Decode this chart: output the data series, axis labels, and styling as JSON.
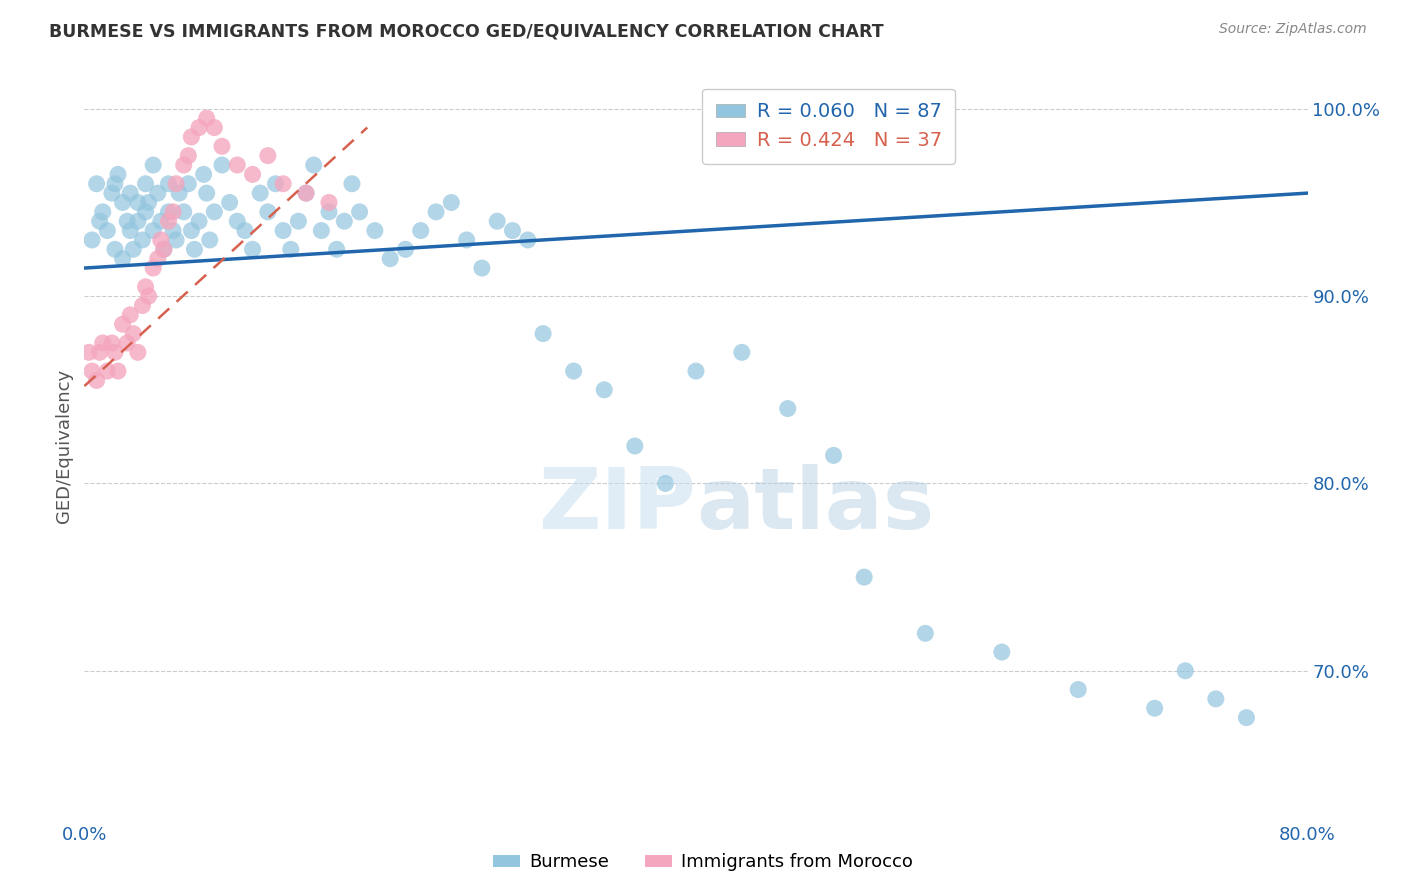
{
  "title": "BURMESE VS IMMIGRANTS FROM MOROCCO GED/EQUIVALENCY CORRELATION CHART",
  "source": "Source: ZipAtlas.com",
  "ylabel": "GED/Equivalency",
  "xmin": 0.0,
  "xmax": 0.8,
  "ymin": 0.62,
  "ymax": 1.02,
  "yticks": [
    0.7,
    0.8,
    0.9,
    1.0
  ],
  "ytick_labels": [
    "70.0%",
    "80.0%",
    "90.0%",
    "100.0%"
  ],
  "xtick_vals": [
    0.0,
    0.1,
    0.2,
    0.3,
    0.4,
    0.5,
    0.6,
    0.7,
    0.8
  ],
  "xtick_labels": [
    "0.0%",
    "",
    "",
    "",
    "",
    "",
    "",
    "",
    "80.0%"
  ],
  "blue_R": 0.06,
  "blue_N": 87,
  "pink_R": 0.424,
  "pink_N": 37,
  "blue_color": "#92c5de",
  "pink_color": "#f4a6be",
  "blue_line_color": "#2166ac",
  "pink_line_color": "#d6604d",
  "legend_blue_label": "Burmese",
  "legend_pink_label": "Immigrants from Morocco",
  "blue_x": [
    0.005,
    0.008,
    0.01,
    0.012,
    0.015,
    0.018,
    0.02,
    0.02,
    0.022,
    0.025,
    0.025,
    0.028,
    0.03,
    0.03,
    0.032,
    0.035,
    0.035,
    0.038,
    0.04,
    0.04,
    0.042,
    0.045,
    0.045,
    0.048,
    0.05,
    0.052,
    0.055,
    0.055,
    0.058,
    0.06,
    0.062,
    0.065,
    0.068,
    0.07,
    0.072,
    0.075,
    0.078,
    0.08,
    0.082,
    0.085,
    0.09,
    0.095,
    0.1,
    0.105,
    0.11,
    0.115,
    0.12,
    0.125,
    0.13,
    0.135,
    0.14,
    0.145,
    0.15,
    0.155,
    0.16,
    0.165,
    0.17,
    0.175,
    0.18,
    0.19,
    0.2,
    0.21,
    0.22,
    0.23,
    0.24,
    0.25,
    0.26,
    0.27,
    0.28,
    0.29,
    0.3,
    0.32,
    0.34,
    0.36,
    0.38,
    0.4,
    0.43,
    0.46,
    0.49,
    0.51,
    0.55,
    0.6,
    0.65,
    0.7,
    0.72,
    0.74,
    0.76
  ],
  "blue_y": [
    0.93,
    0.96,
    0.94,
    0.945,
    0.935,
    0.955,
    0.925,
    0.96,
    0.965,
    0.92,
    0.95,
    0.94,
    0.935,
    0.955,
    0.925,
    0.95,
    0.94,
    0.93,
    0.945,
    0.96,
    0.95,
    0.97,
    0.935,
    0.955,
    0.94,
    0.925,
    0.96,
    0.945,
    0.935,
    0.93,
    0.955,
    0.945,
    0.96,
    0.935,
    0.925,
    0.94,
    0.965,
    0.955,
    0.93,
    0.945,
    0.97,
    0.95,
    0.94,
    0.935,
    0.925,
    0.955,
    0.945,
    0.96,
    0.935,
    0.925,
    0.94,
    0.955,
    0.97,
    0.935,
    0.945,
    0.925,
    0.94,
    0.96,
    0.945,
    0.935,
    0.92,
    0.925,
    0.935,
    0.945,
    0.95,
    0.93,
    0.915,
    0.94,
    0.935,
    0.93,
    0.88,
    0.86,
    0.85,
    0.82,
    0.8,
    0.86,
    0.87,
    0.84,
    0.815,
    0.75,
    0.72,
    0.71,
    0.69,
    0.68,
    0.7,
    0.685,
    0.675
  ],
  "pink_x": [
    0.003,
    0.005,
    0.008,
    0.01,
    0.012,
    0.015,
    0.018,
    0.02,
    0.022,
    0.025,
    0.028,
    0.03,
    0.032,
    0.035,
    0.038,
    0.04,
    0.042,
    0.045,
    0.048,
    0.05,
    0.052,
    0.055,
    0.058,
    0.06,
    0.065,
    0.068,
    0.07,
    0.075,
    0.08,
    0.085,
    0.09,
    0.1,
    0.11,
    0.12,
    0.13,
    0.145,
    0.16
  ],
  "pink_y": [
    0.87,
    0.86,
    0.855,
    0.87,
    0.875,
    0.86,
    0.875,
    0.87,
    0.86,
    0.885,
    0.875,
    0.89,
    0.88,
    0.87,
    0.895,
    0.905,
    0.9,
    0.915,
    0.92,
    0.93,
    0.925,
    0.94,
    0.945,
    0.96,
    0.97,
    0.975,
    0.985,
    0.99,
    0.995,
    0.99,
    0.98,
    0.97,
    0.965,
    0.975,
    0.96,
    0.955,
    0.95
  ]
}
